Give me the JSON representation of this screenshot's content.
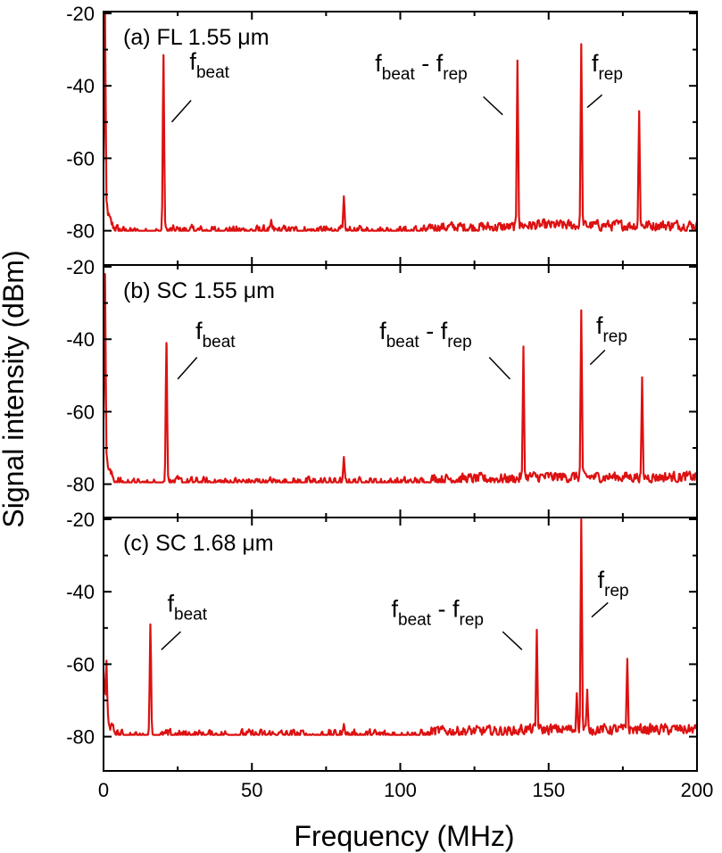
{
  "chart_data": {
    "type": "line",
    "xlabel": "Frequency (MHz)",
    "ylabel": "Signal intensity (dBm)",
    "xlim": [
      0,
      200
    ],
    "ylim": [
      -90,
      -20
    ],
    "x_ticks": [
      "0",
      "50",
      "100",
      "150",
      "200"
    ],
    "y_ticks": [
      "-20",
      "-40",
      "-60",
      "-80"
    ],
    "grid": false,
    "line_color": "#dd1111",
    "panels": [
      {
        "id": "a",
        "title": "(a) FL  1.55 μm",
        "baseline": -80,
        "peaks": [
          {
            "x": 0.5,
            "y": -20
          },
          {
            "x": 20.2,
            "y": -31.5
          },
          {
            "x": 56.5,
            "y": -77
          },
          {
            "x": 81,
            "y": -70.5
          },
          {
            "x": 139.5,
            "y": -33
          },
          {
            "x": 161,
            "y": -28.5
          },
          {
            "x": 180.5,
            "y": -47
          }
        ],
        "annotations": [
          {
            "base": "f",
            "sub": "beat",
            "x": 29,
            "y": -35.5,
            "pointer": [
              [
                23,
                -50
              ],
              [
                29.5,
                -44
              ]
            ]
          },
          {
            "base": "f",
            "sub": "beat",
            "op": " - ",
            "base2": "f",
            "sub2": "rep",
            "x": 91.5,
            "y": -36,
            "pointer": [
              [
                134.5,
                -48
              ],
              [
                128,
                -43
              ]
            ]
          },
          {
            "base": "f",
            "sub": "rep",
            "x": 164.5,
            "y": -36,
            "pointer": [
              [
                163,
                -46
              ],
              [
                168,
                -42.5
              ]
            ]
          }
        ]
      },
      {
        "id": "b",
        "title": "(b) SC  1.55 μm",
        "baseline": -79.5,
        "peaks": [
          {
            "x": 0.5,
            "y": -22
          },
          {
            "x": 21.2,
            "y": -41
          },
          {
            "x": 81,
            "y": -72.5
          },
          {
            "x": 141.5,
            "y": -42
          },
          {
            "x": 161,
            "y": -32
          },
          {
            "x": 181.5,
            "y": -50.5
          }
        ],
        "annotations": [
          {
            "base": "f",
            "sub": "beat",
            "x": 31,
            "y": -40,
            "pointer": [
              [
                25,
                -51
              ],
              [
                31.5,
                -45
              ]
            ]
          },
          {
            "base": "f",
            "sub": "beat",
            "op": " - ",
            "base2": "f",
            "sub2": "rep",
            "x": 93,
            "y": -40,
            "pointer": [
              [
                137,
                -51
              ],
              [
                130,
                -45
              ]
            ]
          },
          {
            "base": "f",
            "sub": "rep",
            "x": 166,
            "y": -38.5,
            "pointer": [
              [
                164,
                -47
              ],
              [
                169,
                -43
              ]
            ]
          }
        ]
      },
      {
        "id": "c",
        "title": "(c) SC  1.68 μm",
        "baseline": -79.5,
        "peaks": [
          {
            "x": 1,
            "y": -59
          },
          {
            "x": 15.8,
            "y": -49
          },
          {
            "x": 81,
            "y": -76.5
          },
          {
            "x": 146,
            "y": -50.5
          },
          {
            "x": 159.5,
            "y": -68
          },
          {
            "x": 161,
            "y": -20
          },
          {
            "x": 163,
            "y": -67
          },
          {
            "x": 176.5,
            "y": -58.5
          }
        ],
        "annotations": [
          {
            "base": "f",
            "sub": "beat",
            "x": 21.5,
            "y": -45.5,
            "pointer": [
              [
                19.5,
                -56
              ],
              [
                26,
                -51
              ]
            ]
          },
          {
            "base": "f",
            "sub": "beat",
            "op": " - ",
            "base2": "f",
            "sub2": "rep",
            "x": 97,
            "y": -47,
            "pointer": [
              [
                141,
                -56
              ],
              [
                134.5,
                -51
              ]
            ]
          },
          {
            "base": "f",
            "sub": "rep",
            "x": 166.5,
            "y": -39,
            "pointer": [
              [
                164.5,
                -47
              ],
              [
                170,
                -43
              ]
            ]
          }
        ]
      }
    ]
  }
}
